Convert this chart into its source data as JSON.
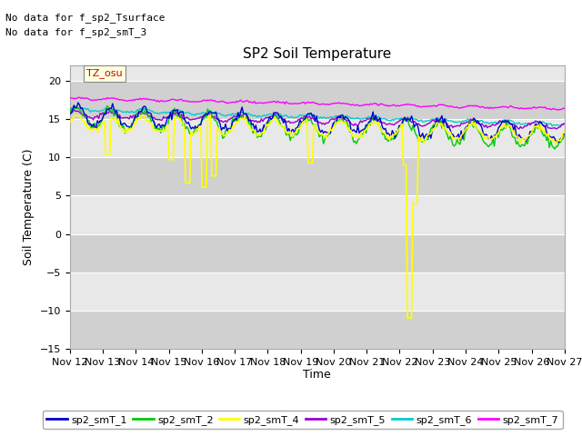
{
  "title": "SP2 Soil Temperature",
  "ylabel": "Soil Temperature (C)",
  "xlabel": "Time",
  "no_data_text1": "No data for f_sp2_Tsurface",
  "no_data_text2": "No data for f_sp2_smT_3",
  "tz_label": "TZ_osu",
  "ylim": [
    -15,
    22
  ],
  "yticks": [
    -15,
    -10,
    -5,
    0,
    5,
    10,
    15,
    20
  ],
  "xtick_labels": [
    "Nov 12",
    "Nov 13",
    "Nov 14",
    "Nov 15",
    "Nov 16",
    "Nov 17",
    "Nov 18",
    "Nov 19",
    "Nov 20",
    "Nov 21",
    "Nov 22",
    "Nov 23",
    "Nov 24",
    "Nov 25",
    "Nov 26",
    "Nov 27"
  ],
  "series_colors": {
    "sp2_smT_1": "#0000cc",
    "sp2_smT_2": "#00cc00",
    "sp2_smT_4": "#ffff00",
    "sp2_smT_5": "#9900cc",
    "sp2_smT_6": "#00cccc",
    "sp2_smT_7": "#ff00ff"
  },
  "legend_labels": [
    "sp2_smT_1",
    "sp2_smT_2",
    "sp2_smT_4",
    "sp2_smT_5",
    "sp2_smT_6",
    "sp2_smT_7"
  ],
  "bg_color": "#e8e8e8",
  "band_dark_color": "#d0d0d0",
  "fig_bg": "#ffffff",
  "grid_color": "#ffffff",
  "spine_color": "#aaaaaa"
}
